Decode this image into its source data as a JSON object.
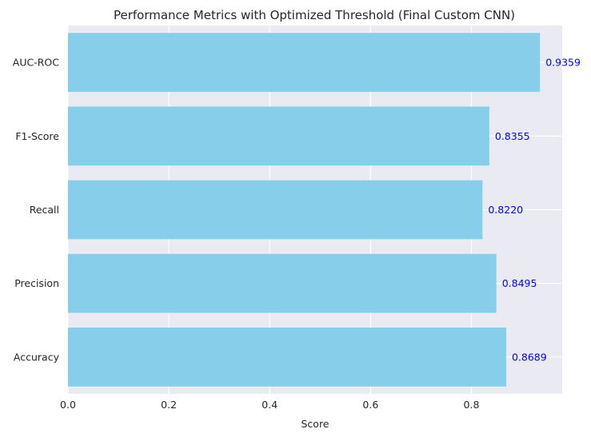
{
  "chart_data": {
    "type": "bar",
    "orientation": "horizontal",
    "title": "Performance Metrics with Optimized Threshold (Final Custom CNN)",
    "xlabel": "Score",
    "ylabel": "",
    "categories": [
      "Accuracy",
      "Precision",
      "Recall",
      "F1-Score",
      "AUC-ROC"
    ],
    "values": [
      0.8689,
      0.8495,
      0.822,
      0.8355,
      0.9359
    ],
    "data_labels": [
      "0.8689",
      "0.8495",
      "0.8220",
      "0.8355",
      "0.9359"
    ],
    "xlim": [
      0,
      0.98
    ],
    "xticks": [
      0.0,
      0.2,
      0.4,
      0.6,
      0.8
    ],
    "xtick_labels": [
      "0.0",
      "0.2",
      "0.4",
      "0.6",
      "0.8"
    ],
    "grid": true,
    "colors": {
      "bar": "#87ceeb",
      "plot_background": "#eaeaf2",
      "grid": "#ffffff",
      "data_label": "#0000ff",
      "text": "#262626"
    }
  }
}
